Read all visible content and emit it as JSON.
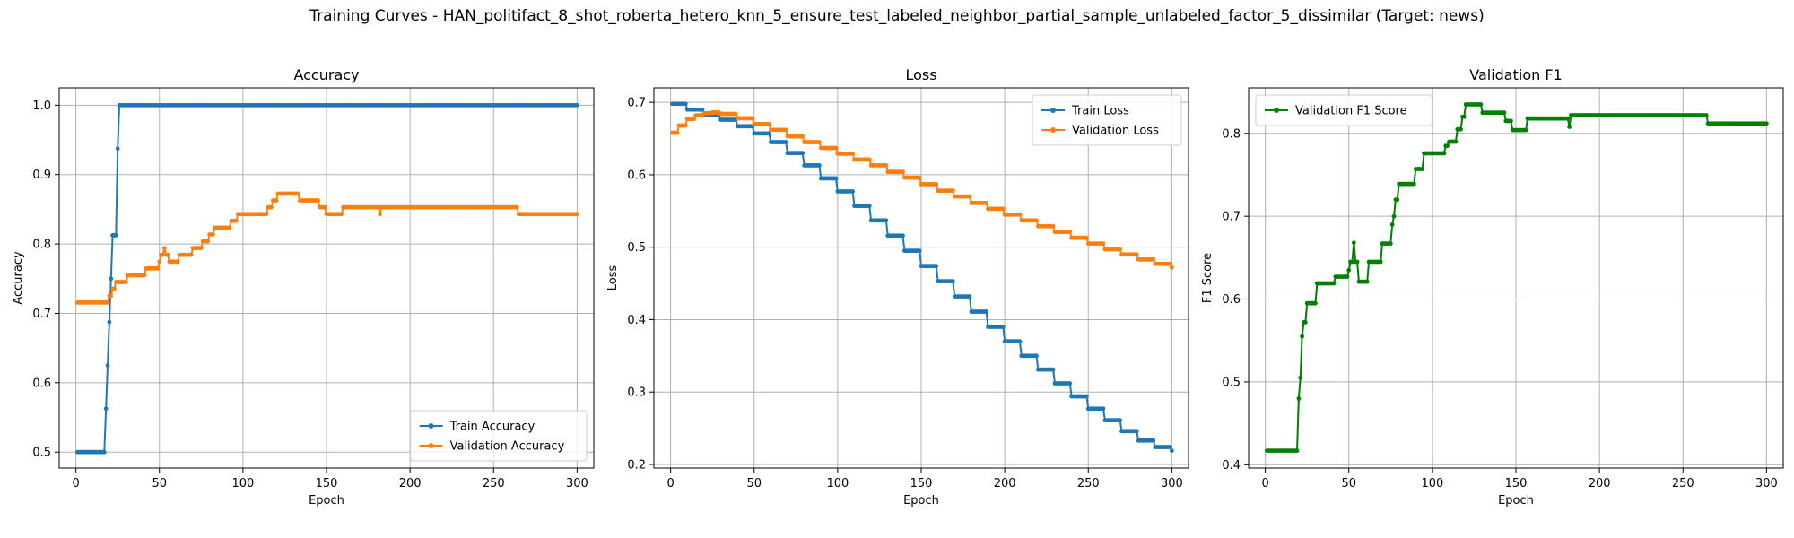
{
  "figure": {
    "title": "Training Curves - HAN_politifact_8_shot_roberta_hetero_knn_5_ensure_test_labeled_neighbor_partial_sample_unlabeled_factor_5_dissimilar (Target: news)"
  },
  "colors": {
    "train": "#1f77b4",
    "validation": "#ff7f0e",
    "f1": "#008000",
    "grid": "#b0b0b0"
  },
  "chart_data": [
    {
      "type": "line",
      "title": "Accuracy",
      "xlabel": "Epoch",
      "ylabel": "Accuracy",
      "xlim": [
        -10,
        310
      ],
      "ylim": [
        0.477,
        1.025
      ],
      "xticks": [
        0,
        50,
        100,
        150,
        200,
        250,
        300
      ],
      "yticks": [
        0.5,
        0.6,
        0.7,
        0.8,
        0.9,
        1.0
      ],
      "ytick_labels": [
        "0.5",
        "0.6",
        "0.7",
        "0.8",
        "0.9",
        "1.0"
      ],
      "grid": true,
      "legend_position": "lower-right",
      "marker": "dot",
      "series": [
        {
          "name": "Train Accuracy",
          "color": "#1f77b4",
          "points": [
            [
              1,
              0.5
            ],
            [
              17,
              0.5
            ],
            [
              18,
              0.5625
            ],
            [
              19,
              0.625
            ],
            [
              20,
              0.6875
            ],
            [
              21,
              0.75
            ],
            [
              22,
              0.8125
            ],
            [
              24,
              0.8125
            ],
            [
              25,
              0.9375
            ],
            [
              26,
              1.0
            ],
            [
              300,
              1.0
            ]
          ]
        },
        {
          "name": "Validation Accuracy",
          "color": "#ff7f0e",
          "points": [
            [
              1,
              0.7156
            ],
            [
              19,
              0.7156
            ],
            [
              20,
              0.7253
            ],
            [
              22,
              0.7353
            ],
            [
              24,
              0.7451
            ],
            [
              31,
              0.7549
            ],
            [
              42,
              0.7647
            ],
            [
              50,
              0.7745
            ],
            [
              51,
              0.7843
            ],
            [
              53,
              0.7941
            ],
            [
              54,
              0.7843
            ],
            [
              56,
              0.7745
            ],
            [
              62,
              0.7843
            ],
            [
              70,
              0.7941
            ],
            [
              76,
              0.8039
            ],
            [
              80,
              0.8137
            ],
            [
              83,
              0.8235
            ],
            [
              93,
              0.8333
            ],
            [
              97,
              0.8431
            ],
            [
              115,
              0.8529
            ],
            [
              118,
              0.8627
            ],
            [
              121,
              0.8725
            ],
            [
              134,
              0.8627
            ],
            [
              146,
              0.8529
            ],
            [
              150,
              0.8431
            ],
            [
              160,
              0.8529
            ],
            [
              182,
              0.8431
            ],
            [
              183,
              0.8529
            ],
            [
              265,
              0.8431
            ],
            [
              300,
              0.8431
            ]
          ]
        }
      ]
    },
    {
      "type": "line",
      "title": "Loss",
      "xlabel": "Epoch",
      "ylabel": "Loss",
      "xlim": [
        -10,
        310
      ],
      "ylim": [
        0.195,
        0.72
      ],
      "xticks": [
        0,
        50,
        100,
        150,
        200,
        250,
        300
      ],
      "yticks": [
        0.2,
        0.3,
        0.4,
        0.5,
        0.6,
        0.7
      ],
      "ytick_labels": [
        "0.2",
        "0.3",
        "0.4",
        "0.5",
        "0.6",
        "0.7"
      ],
      "grid": true,
      "legend_position": "upper-right",
      "marker": "dot",
      "series": [
        {
          "name": "Train Loss",
          "color": "#1f77b4",
          "points": [
            [
              1,
              0.698
            ],
            [
              10,
              0.69
            ],
            [
              20,
              0.683
            ],
            [
              30,
              0.676
            ],
            [
              40,
              0.667
            ],
            [
              50,
              0.657
            ],
            [
              60,
              0.645
            ],
            [
              70,
              0.63
            ],
            [
              80,
              0.613
            ],
            [
              90,
              0.595
            ],
            [
              100,
              0.577
            ],
            [
              110,
              0.557
            ],
            [
              120,
              0.537
            ],
            [
              130,
              0.516
            ],
            [
              140,
              0.495
            ],
            [
              150,
              0.474
            ],
            [
              160,
              0.453
            ],
            [
              170,
              0.432
            ],
            [
              180,
              0.411
            ],
            [
              190,
              0.39
            ],
            [
              200,
              0.37
            ],
            [
              210,
              0.35
            ],
            [
              220,
              0.331
            ],
            [
              230,
              0.312
            ],
            [
              240,
              0.294
            ],
            [
              250,
              0.277
            ],
            [
              260,
              0.261
            ],
            [
              270,
              0.246
            ],
            [
              280,
              0.233
            ],
            [
              290,
              0.224
            ],
            [
              300,
              0.219
            ]
          ]
        },
        {
          "name": "Validation Loss",
          "color": "#ff7f0e",
          "points": [
            [
              1,
              0.658
            ],
            [
              5,
              0.668
            ],
            [
              10,
              0.677
            ],
            [
              15,
              0.682
            ],
            [
              20,
              0.685
            ],
            [
              25,
              0.686
            ],
            [
              30,
              0.684
            ],
            [
              40,
              0.678
            ],
            [
              50,
              0.67
            ],
            [
              60,
              0.662
            ],
            [
              70,
              0.653
            ],
            [
              80,
              0.645
            ],
            [
              90,
              0.637
            ],
            [
              100,
              0.629
            ],
            [
              110,
              0.621
            ],
            [
              120,
              0.613
            ],
            [
              130,
              0.604
            ],
            [
              140,
              0.596
            ],
            [
              150,
              0.587
            ],
            [
              160,
              0.578
            ],
            [
              170,
              0.57
            ],
            [
              180,
              0.561
            ],
            [
              190,
              0.553
            ],
            [
              200,
              0.545
            ],
            [
              210,
              0.537
            ],
            [
              220,
              0.529
            ],
            [
              230,
              0.521
            ],
            [
              240,
              0.513
            ],
            [
              250,
              0.505
            ],
            [
              260,
              0.497
            ],
            [
              270,
              0.49
            ],
            [
              280,
              0.483
            ],
            [
              290,
              0.477
            ],
            [
              300,
              0.472
            ]
          ]
        }
      ]
    },
    {
      "type": "line",
      "title": "Validation F1",
      "xlabel": "Epoch",
      "ylabel": "F1 Score",
      "xlim": [
        -10,
        310
      ],
      "ylim": [
        0.396,
        0.855
      ],
      "xticks": [
        0,
        50,
        100,
        150,
        200,
        250,
        300
      ],
      "yticks": [
        0.4,
        0.5,
        0.6,
        0.7,
        0.8
      ],
      "ytick_labels": [
        "0.4",
        "0.5",
        "0.6",
        "0.7",
        "0.8"
      ],
      "grid": true,
      "legend_position": "upper-left",
      "marker": "dot",
      "series": [
        {
          "name": "Validation F1 Score",
          "color": "#008000",
          "points": [
            [
              1,
              0.417
            ],
            [
              19,
              0.417
            ],
            [
              20,
              0.48
            ],
            [
              21,
              0.505
            ],
            [
              22,
              0.555
            ],
            [
              23,
              0.572
            ],
            [
              25,
              0.595
            ],
            [
              31,
              0.619
            ],
            [
              42,
              0.627
            ],
            [
              50,
              0.635
            ],
            [
              51,
              0.645
            ],
            [
              53,
              0.668
            ],
            [
              54,
              0.645
            ],
            [
              56,
              0.621
            ],
            [
              62,
              0.645
            ],
            [
              70,
              0.667
            ],
            [
              76,
              0.69
            ],
            [
              77,
              0.7
            ],
            [
              78,
              0.72
            ],
            [
              80,
              0.739
            ],
            [
              83,
              0.739
            ],
            [
              90,
              0.757
            ],
            [
              95,
              0.776
            ],
            [
              103,
              0.776
            ],
            [
              108,
              0.785
            ],
            [
              110,
              0.79
            ],
            [
              115,
              0.805
            ],
            [
              118,
              0.82
            ],
            [
              120,
              0.835
            ],
            [
              130,
              0.825
            ],
            [
              140,
              0.825
            ],
            [
              144,
              0.815
            ],
            [
              148,
              0.804
            ],
            [
              157,
              0.818
            ],
            [
              180,
              0.818
            ],
            [
              182,
              0.808
            ],
            [
              183,
              0.822
            ],
            [
              265,
              0.812
            ],
            [
              300,
              0.812
            ]
          ]
        }
      ]
    }
  ]
}
